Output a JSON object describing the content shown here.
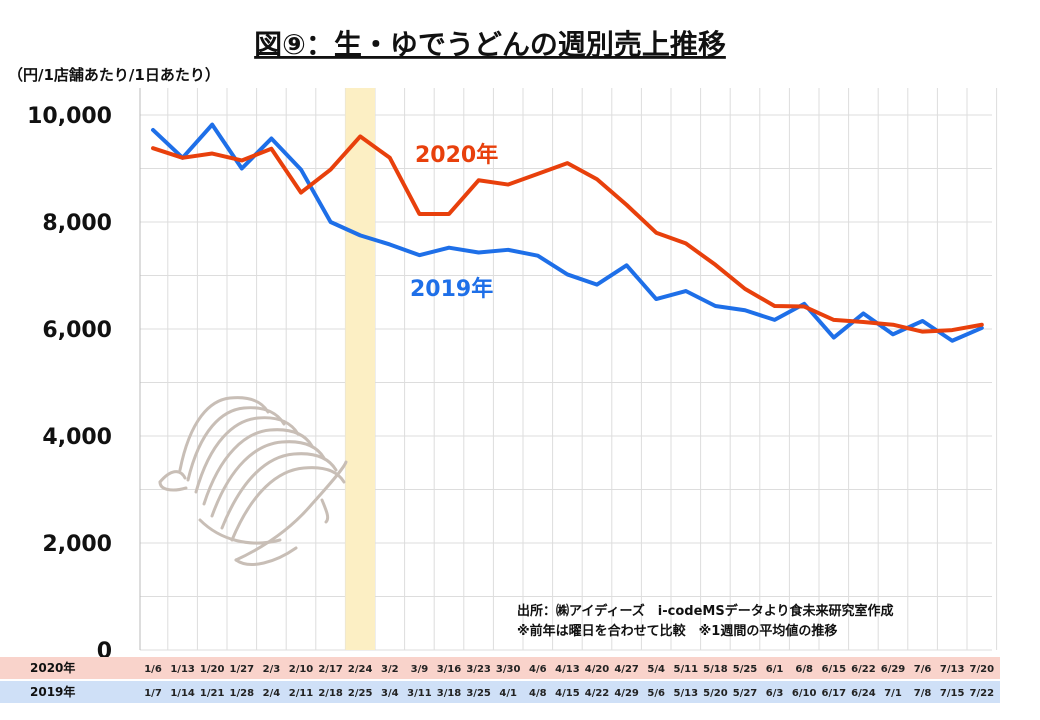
{
  "title": "図⑨：生・ゆでうどんの週別売上推移",
  "unit_label": "（円/1店舗あたり/1日あたり）",
  "source": {
    "line1": "出所：㈱アイディーズ　i-codeMSデータより食未来研究室作成",
    "line2": "※前年は曜日を合わせて比較　※1週間の平均値の推移"
  },
  "row_labels": {
    "year2020": "2020年",
    "year2019": "2019年"
  },
  "colors": {
    "series2020": "#E8400C",
    "series2019": "#1E6FE8",
    "highlight": "#FCEFC4",
    "row2020_bg": "#F9D3CB",
    "row2019_bg": "#CFE0F7",
    "grid": "#DDDDDD"
  },
  "chart_data": {
    "type": "line",
    "ylim": [
      0,
      10000
    ],
    "yticks": [
      0,
      2000,
      4000,
      6000,
      8000,
      10000
    ],
    "ytick_labels": [
      "0",
      "2,000",
      "4,000",
      "6,000",
      "8,000",
      "10,000"
    ],
    "categories_2020": [
      "1/6",
      "1/13",
      "1/20",
      "1/27",
      "2/3",
      "2/10",
      "2/17",
      "2/24",
      "3/2",
      "3/9",
      "3/16",
      "3/23",
      "3/30",
      "4/6",
      "4/13",
      "4/20",
      "4/27",
      "5/4",
      "5/11",
      "5/18",
      "5/25",
      "6/1",
      "6/8",
      "6/15",
      "6/22",
      "6/29",
      "7/6",
      "7/13",
      "7/20"
    ],
    "categories_2019": [
      "1/7",
      "1/14",
      "1/21",
      "1/28",
      "2/4",
      "2/11",
      "2/18",
      "2/25",
      "3/4",
      "3/11",
      "3/18",
      "3/25",
      "4/1",
      "4/8",
      "4/15",
      "4/22",
      "4/29",
      "5/6",
      "5/13",
      "5/20",
      "5/27",
      "6/3",
      "6/10",
      "6/17",
      "6/24",
      "7/1",
      "7/8",
      "7/15",
      "7/22"
    ],
    "highlight_index": 7,
    "series": [
      {
        "name": "2020年",
        "values": [
          9380,
          9200,
          9280,
          9150,
          9370,
          8550,
          8980,
          9600,
          9200,
          8150,
          8150,
          8780,
          8700,
          8900,
          9100,
          8800,
          8320,
          7800,
          7600,
          7200,
          6750,
          6430,
          6420,
          6170,
          6130,
          6080,
          5950,
          5980,
          6080
        ]
      },
      {
        "name": "2019年",
        "values": [
          9720,
          9200,
          9820,
          9000,
          9560,
          8980,
          8000,
          7750,
          7580,
          7380,
          7520,
          7430,
          7480,
          7370,
          7020,
          6830,
          7190,
          6560,
          6710,
          6430,
          6350,
          6170,
          6470,
          5840,
          6290,
          5900,
          6150,
          5780,
          6020
        ]
      }
    ]
  }
}
